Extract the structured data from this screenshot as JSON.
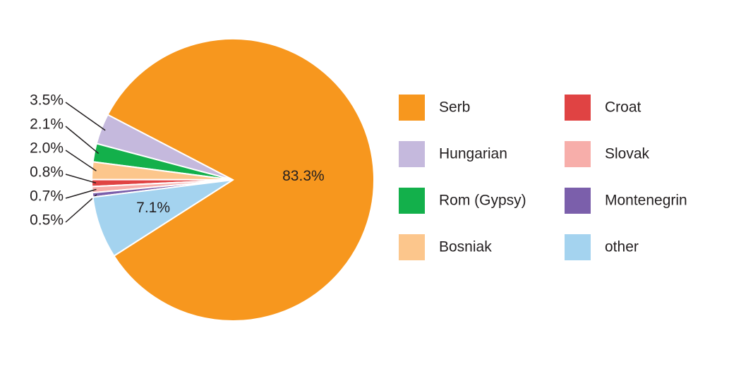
{
  "chart_data": {
    "type": "pie",
    "categories": [
      "Serb",
      "Hungarian",
      "Rom (Gypsy)",
      "Bosniak",
      "Croat",
      "Slovak",
      "Montenegrin",
      "other"
    ],
    "values": [
      83.3,
      3.5,
      2.1,
      2.0,
      0.8,
      0.7,
      0.5,
      7.1
    ],
    "value_labels": [
      "83.3%",
      "3.5%",
      "2.1%",
      "2.0%",
      "0.8%",
      "0.7%",
      "0.5%",
      "7.1%"
    ],
    "colors": [
      "#f7971e",
      "#c5b9dd",
      "#13b04b",
      "#fcc68c",
      "#e04343",
      "#f7aeaa",
      "#7b5fab",
      "#a4d3ef"
    ],
    "legend": "right"
  }
}
